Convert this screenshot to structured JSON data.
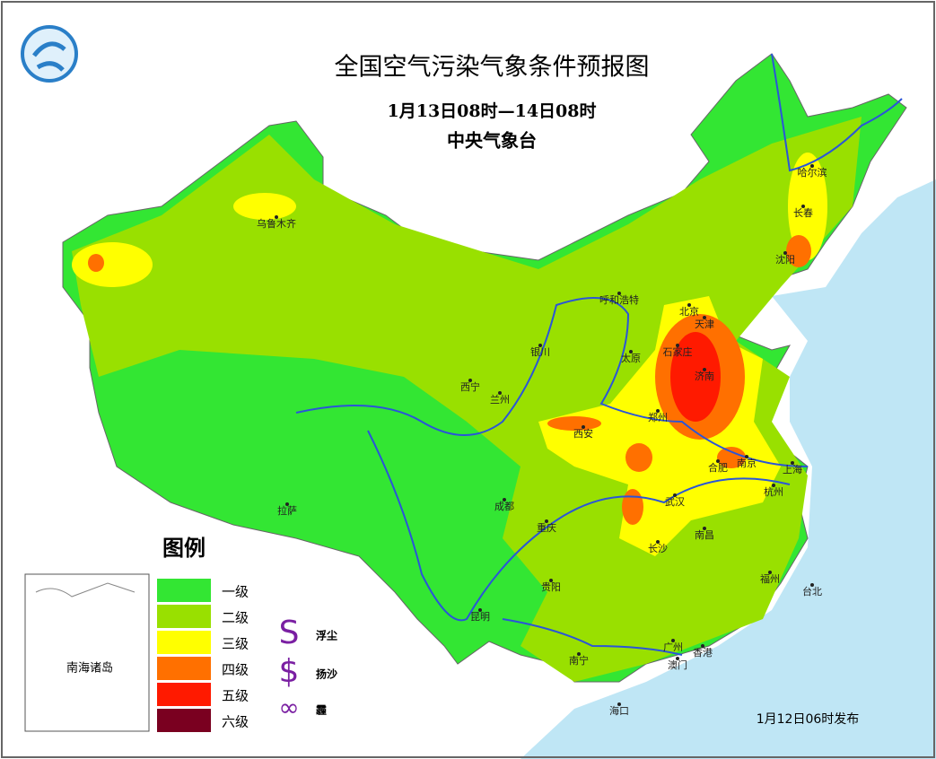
{
  "header": {
    "title": "全国空气污染气象条件预报图",
    "subtitle": "1月13日08时—14日08时",
    "issuer": "中央气象台"
  },
  "legend": {
    "title": "图例",
    "levels": [
      {
        "label": "一级",
        "color": "#33e633"
      },
      {
        "label": "二级",
        "color": "#99e000"
      },
      {
        "label": "三级",
        "color": "#ffff00"
      },
      {
        "label": "四级",
        "color": "#ff7000"
      },
      {
        "label": "五级",
        "color": "#ff1a00"
      },
      {
        "label": "六级",
        "color": "#7a0020"
      }
    ],
    "symbols": [
      {
        "label": "浮尘"
      },
      {
        "label": "扬沙"
      },
      {
        "label": "霾"
      }
    ]
  },
  "cities": [
    "乌鲁木齐",
    "哈尔滨",
    "长春",
    "沈阳",
    "呼和浩特",
    "北京",
    "天津",
    "石家庄",
    "太原",
    "银川",
    "济南",
    "西宁",
    "兰州",
    "郑州",
    "西安",
    "合肥",
    "南京",
    "上海",
    "杭州",
    "成都",
    "武汉",
    "重庆",
    "拉萨",
    "长沙",
    "南昌",
    "贵阳",
    "福州",
    "台北",
    "昆明",
    "广州",
    "香港",
    "澳门",
    "南宁",
    "海口"
  ],
  "inset": {
    "label": "南海诸岛"
  },
  "footer": {
    "issued": "1月12日06时发布"
  }
}
